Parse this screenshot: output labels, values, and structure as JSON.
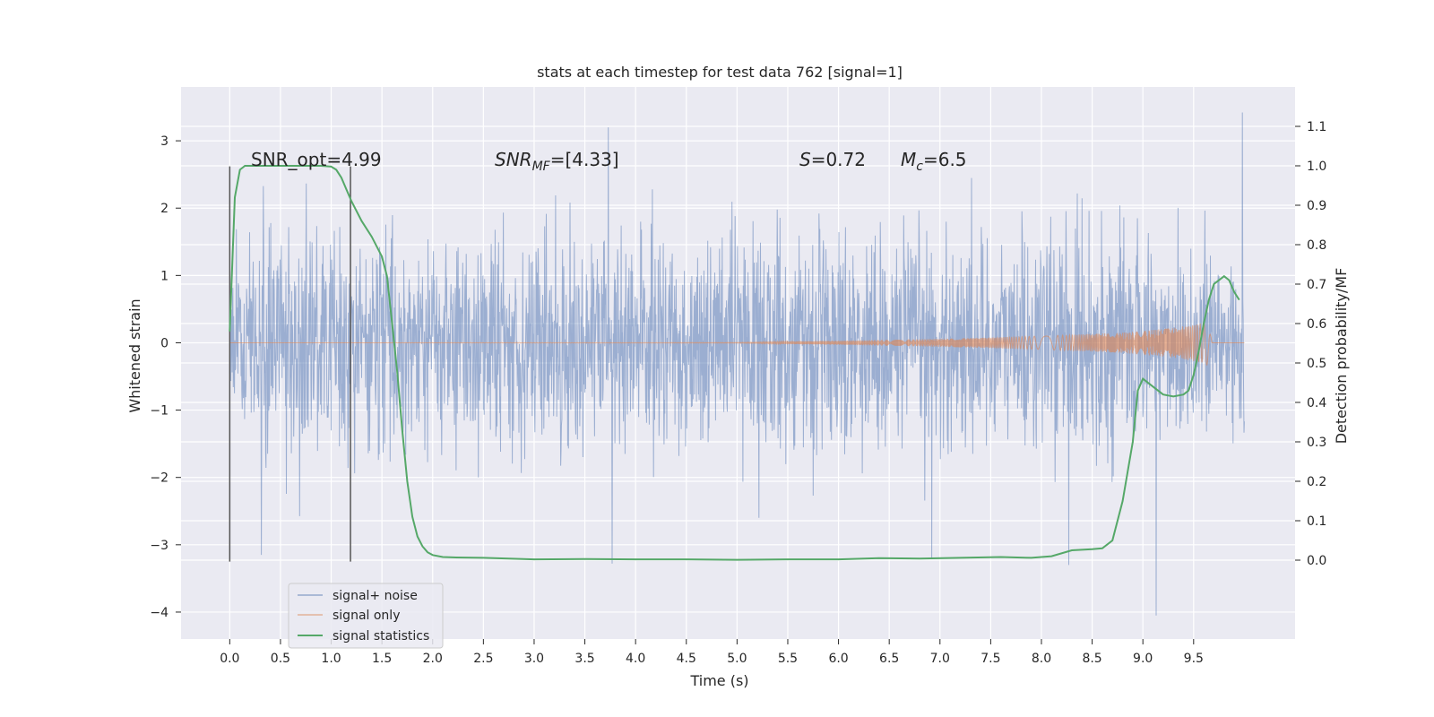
{
  "chart_data": {
    "type": "line",
    "title": "stats at each timestep for test data 762 [signal=1]",
    "xlabel": "Time (s)",
    "ylabel": "Whitened strain",
    "ylabel_right": "Detection probability/MF",
    "xlim": [
      -0.48,
      10.5
    ],
    "ylim": [
      -4.4,
      3.8
    ],
    "ylim_right": [
      -0.2,
      1.2
    ],
    "x_ticks": [
      "0.0",
      "0.5",
      "1.0",
      "1.5",
      "2.0",
      "2.5",
      "3.0",
      "3.5",
      "4.0",
      "4.5",
      "5.0",
      "5.5",
      "6.0",
      "6.5",
      "7.0",
      "7.5",
      "8.0",
      "8.5",
      "9.0",
      "9.5"
    ],
    "y_ticks": [
      "3",
      "2",
      "1",
      "0",
      "−1",
      "−2",
      "−3",
      "−4"
    ],
    "y_tick_values": [
      3,
      2,
      1,
      0,
      -1,
      -2,
      -3,
      -4
    ],
    "y_right_ticks": [
      "1.1",
      "1.0",
      "0.9",
      "0.8",
      "0.7",
      "0.6",
      "0.5",
      "0.4",
      "0.3",
      "0.2",
      "0.1",
      "0.0"
    ],
    "y_right_tick_values": [
      1.1,
      1.0,
      0.9,
      0.8,
      0.7,
      0.6,
      0.5,
      0.4,
      0.3,
      0.2,
      0.1,
      0.0
    ],
    "grid": true,
    "legend_position": "lower-left",
    "annotations": {
      "snr_opt": "SNR_opt=4.99",
      "snr_mf_sym": "SNR",
      "snr_mf_sub": "MF",
      "snr_mf_val": "=[4.33]",
      "s_sym": "S",
      "s_val": "=0.72",
      "mc_sym": "M",
      "mc_sub": "c",
      "mc_val": "=6.5"
    },
    "vertical_markers": [
      {
        "x": 0.0,
        "ymin": -3.25,
        "ymax": 2.62
      },
      {
        "x": 1.19,
        "ymin": -3.25,
        "ymax": 2.62
      }
    ],
    "series": [
      {
        "name": "signal+ noise",
        "color": "#4c72b0",
        "description_values": "dense noise spanning roughly -2 to 2 whitened strain from 0.0 s to 10.0 s",
        "x_range": [
          0.0,
          10.0
        ],
        "typical_amplitude": 1.0,
        "extremes": [
          {
            "x": 3.73,
            "y": 3.2
          },
          {
            "x": 9.98,
            "y": 3.42
          },
          {
            "x": 9.13,
            "y": -4.05
          },
          {
            "x": 8.27,
            "y": -3.3
          },
          {
            "x": 3.77,
            "y": -3.28
          },
          {
            "x": 0.31,
            "y": -3.15
          },
          {
            "x": 6.92,
            "y": -3.2
          }
        ]
      },
      {
        "name": "signal only",
        "color": "#dd8452",
        "description_values": "chirp with amplitude growing from ~0 to ~0.3 between 5.0 s and 9.65 s",
        "x_range": [
          0.0,
          10.0
        ],
        "envelope": [
          {
            "x": 0.0,
            "y": 0.0
          },
          {
            "x": 5.0,
            "y": 0.005
          },
          {
            "x": 6.0,
            "y": 0.03
          },
          {
            "x": 7.0,
            "y": 0.06
          },
          {
            "x": 8.0,
            "y": 0.1
          },
          {
            "x": 8.8,
            "y": 0.15
          },
          {
            "x": 9.3,
            "y": 0.22
          },
          {
            "x": 9.6,
            "y": 0.3
          },
          {
            "x": 9.65,
            "y": 0.35
          },
          {
            "x": 9.68,
            "y": 0.0
          },
          {
            "x": 10.0,
            "y": 0.0
          }
        ]
      },
      {
        "name": "signal statistics",
        "color": "#55a868",
        "axis": "right",
        "x": [
          0.0,
          0.05,
          0.1,
          0.15,
          0.2,
          0.3,
          0.5,
          0.7,
          0.9,
          1.0,
          1.05,
          1.1,
          1.15,
          1.2,
          1.3,
          1.4,
          1.5,
          1.55,
          1.6,
          1.65,
          1.7,
          1.75,
          1.8,
          1.85,
          1.9,
          1.95,
          2.0,
          2.1,
          2.2,
          2.5,
          3.0,
          3.5,
          4.0,
          4.5,
          5.0,
          5.5,
          6.0,
          6.4,
          6.8,
          7.2,
          7.6,
          7.9,
          8.1,
          8.3,
          8.5,
          8.6,
          8.7,
          8.8,
          8.9,
          8.95,
          9.0,
          9.1,
          9.2,
          9.3,
          9.4,
          9.45,
          9.5,
          9.55,
          9.6,
          9.65,
          9.7,
          9.75,
          9.8,
          9.85,
          9.9,
          9.95
        ],
        "values": [
          0.58,
          0.92,
          0.99,
          1.0,
          1.0,
          1.0,
          1.0,
          1.0,
          1.0,
          0.998,
          0.99,
          0.97,
          0.94,
          0.91,
          0.86,
          0.82,
          0.77,
          0.72,
          0.6,
          0.48,
          0.33,
          0.2,
          0.11,
          0.06,
          0.035,
          0.02,
          0.013,
          0.008,
          0.007,
          0.006,
          0.002,
          0.003,
          0.002,
          0.002,
          0.001,
          0.002,
          0.002,
          0.005,
          0.004,
          0.006,
          0.008,
          0.006,
          0.01,
          0.025,
          0.028,
          0.03,
          0.05,
          0.15,
          0.3,
          0.43,
          0.46,
          0.44,
          0.42,
          0.415,
          0.42,
          0.43,
          0.47,
          0.53,
          0.6,
          0.66,
          0.7,
          0.71,
          0.72,
          0.71,
          0.68,
          0.66
        ]
      }
    ]
  }
}
